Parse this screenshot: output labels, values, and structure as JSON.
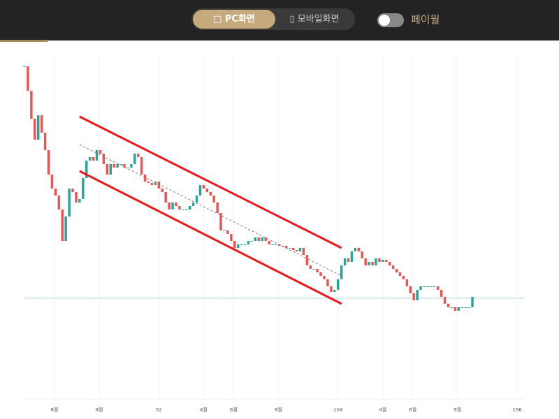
{
  "header": {
    "pc_view": "PC화면",
    "mobile_view": "모바일화면",
    "paywall": "페이월"
  },
  "chart_data": {
    "type": "candlestick",
    "x": [
      13,
      14,
      15,
      16,
      17,
      18,
      19,
      20,
      21,
      22,
      23,
      24,
      25,
      26,
      27,
      28,
      29,
      30,
      31,
      32,
      33,
      34,
      35,
      36,
      37,
      38,
      39,
      40,
      41,
      42,
      43,
      44,
      45,
      46,
      47,
      48,
      49,
      50,
      51,
      52,
      53,
      54,
      55,
      56,
      57,
      58,
      59,
      60,
      61,
      62,
      63,
      64,
      65,
      66,
      67,
      68,
      69,
      70,
      71,
      72,
      73,
      74,
      75,
      76,
      77,
      78,
      79,
      80,
      81,
      82,
      83,
      84,
      85,
      86,
      87,
      88,
      89,
      90,
      91,
      92,
      93,
      94,
      95,
      96,
      97,
      98,
      99,
      100,
      101,
      102,
      103,
      104,
      105,
      106,
      107,
      108,
      109,
      110,
      111,
      112,
      113,
      114,
      115,
      116,
      117,
      118,
      119,
      120,
      121,
      122,
      123,
      124,
      125,
      126,
      127,
      128,
      129,
      130,
      131,
      132,
      133,
      134,
      135,
      136,
      137,
      138,
      139,
      140,
      141,
      142,
      143
    ],
    "values": [
      405,
      370,
      330,
      300,
      335,
      310,
      285,
      250,
      230,
      220,
      200,
      155,
      190,
      230,
      225,
      210,
      215,
      245,
      270,
      275,
      270,
      285,
      280,
      265,
      250,
      265,
      260,
      265,
      265,
      260,
      260,
      265,
      280,
      275,
      250,
      240,
      238,
      235,
      240,
      230,
      225,
      210,
      200,
      210,
      205,
      200,
      200,
      200,
      205,
      210,
      220,
      235,
      230,
      225,
      220,
      210,
      195,
      170,
      170,
      165,
      155,
      145,
      150,
      150,
      150,
      155,
      155,
      160,
      155,
      160,
      155,
      150,
      150,
      150,
      148,
      148,
      145,
      145,
      142,
      140,
      145,
      135,
      120,
      115,
      115,
      110,
      105,
      100,
      90,
      82,
      85,
      100,
      120,
      130,
      125,
      140,
      145,
      140,
      130,
      120,
      125,
      120,
      130,
      125,
      128,
      125,
      120,
      115,
      110,
      105,
      100,
      90,
      80,
      70,
      85,
      90,
      90,
      90,
      90,
      90,
      85,
      75,
      65,
      60,
      60,
      55,
      60,
      60,
      60,
      60,
      75
    ],
    "up_color": "#26a69a",
    "down_color": "#ef5350",
    "xlim": [
      13,
      158
    ],
    "ylim": [
      0,
      420
    ],
    "xticks": [
      {
        "value": 21.7,
        "label": "6월"
      },
      {
        "value": 34.7,
        "label": "9월"
      },
      52,
      {
        "value": 65,
        "label": "4월"
      },
      {
        "value": 73.7,
        "label": "6월"
      },
      {
        "value": 86.7,
        "label": "9월"
      },
      104,
      {
        "value": 117,
        "label": "4월"
      },
      {
        "value": 125.7,
        "label": "6월"
      },
      {
        "value": 138.7,
        "label": "9월"
      },
      156
    ],
    "grid": true,
    "hline": {
      "value": 73,
      "color": "#b2dfdb"
    },
    "trendlines": [
      {
        "x": [
          29,
          105
        ],
        "y": [
          333,
          145
        ],
        "color": "#e8191c",
        "style": "solid"
      },
      {
        "x": [
          29,
          105
        ],
        "y": [
          293,
          105
        ],
        "color": "#777777",
        "style": "dashed"
      },
      {
        "x": [
          29,
          105
        ],
        "y": [
          255,
          65
        ],
        "color": "#e8191c",
        "style": "solid"
      }
    ]
  }
}
